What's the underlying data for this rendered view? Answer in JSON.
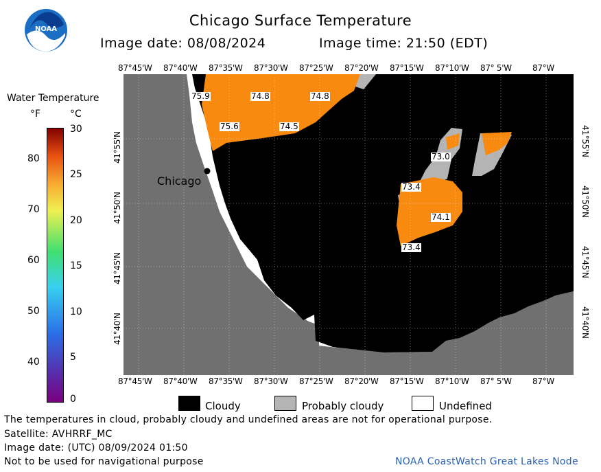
{
  "header": {
    "title": "Chicago Surface Temperature",
    "image_date": "Image date: 08/08/2024",
    "image_time": "Image time: 21:50 (EDT)"
  },
  "logo": {
    "text": "NOAA",
    "icon": "noaa-logo"
  },
  "colorbar": {
    "title": "Water Temperature",
    "unit_f": "°F",
    "unit_c": "°C",
    "f_ticks": [
      "80",
      "70",
      "60",
      "50",
      "40"
    ],
    "c_ticks": [
      "30",
      "25",
      "20",
      "15",
      "10",
      "5",
      "0"
    ]
  },
  "map": {
    "lon_labels": [
      "87°45'W",
      "87°40'W",
      "87°35'W",
      "87°30'W",
      "87°25'W",
      "87°20'W",
      "87°15'W",
      "87°10'W",
      "87° 5'W",
      "87°W"
    ],
    "lat_labels": [
      "41°55'N",
      "41°50'N",
      "41°45'N",
      "41°40'N"
    ],
    "city": "Chicago",
    "temperature_labels": [
      "75.9",
      "74.8",
      "74.8",
      "75.6",
      "74.5",
      "73.0",
      "73.4",
      "74.1",
      "73.4"
    ],
    "colors": {
      "land": "#707070",
      "cloudy": "#000000",
      "probably_cloudy": "#b4b4b4",
      "undefined": "#ffffff",
      "water_warm": "#f88a10"
    }
  },
  "legend": {
    "cloudy": "Cloudy",
    "probably_cloudy": "Probably cloudy",
    "undefined": "Undefined"
  },
  "footer": {
    "note": "The temperatures in cloud, probably cloudy and undefined areas are not for operational purpose.",
    "satellite": "Satellite: AVHRRF_MC",
    "utc_date": "Image date: (UTC) 08/09/2024  01:50",
    "navigation": "Not to be used for navigational purpose",
    "credit": "NOAA CoastWatch Great Lakes Node"
  }
}
